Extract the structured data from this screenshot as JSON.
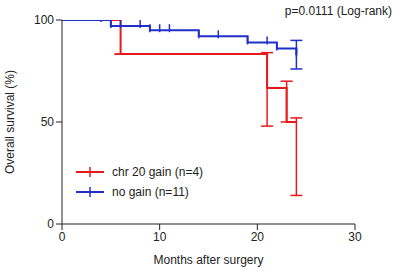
{
  "chart_data": {
    "type": "line",
    "annotation": "p=0.0111 (Log-rank)",
    "x_label": "Months after surgery",
    "y_label": "Overall survival (%)",
    "xlim": [
      0,
      30
    ],
    "xticks": [
      0,
      10,
      20,
      30
    ],
    "ylim": [
      0,
      100
    ],
    "yticks": [
      0,
      50,
      100
    ],
    "legend": "lower left",
    "line_style": "step",
    "series": [
      {
        "name": "chr 20 gain (n=4)",
        "color": "#e8191c",
        "x": [
          0,
          6,
          21,
          23,
          24
        ],
        "values": [
          100,
          83.3,
          66.7,
          50,
          50
        ],
        "ci": [
          null,
          [
            83.3,
            83.3
          ],
          [
            48,
            84
          ],
          [
            50,
            70
          ],
          [
            14,
            52
          ]
        ],
        "censored": {
          "x": [],
          "values": []
        }
      },
      {
        "name": "no gain (n=11)",
        "color": "#1f2fc8",
        "x": [
          0,
          5,
          9,
          14,
          19,
          22,
          24
        ],
        "values": [
          100,
          97,
          95,
          92,
          89,
          86,
          83
        ],
        "ci": [
          null,
          null,
          null,
          null,
          null,
          null,
          [
            76,
            90
          ]
        ],
        "censored": {
          "x": [
            4,
            5,
            6,
            8,
            9,
            10,
            11,
            14,
            16,
            19,
            21,
            22,
            24
          ],
          "values": [
            100,
            97,
            97,
            97,
            95,
            95,
            95,
            92,
            92,
            89,
            89,
            86,
            83
          ]
        }
      }
    ]
  }
}
